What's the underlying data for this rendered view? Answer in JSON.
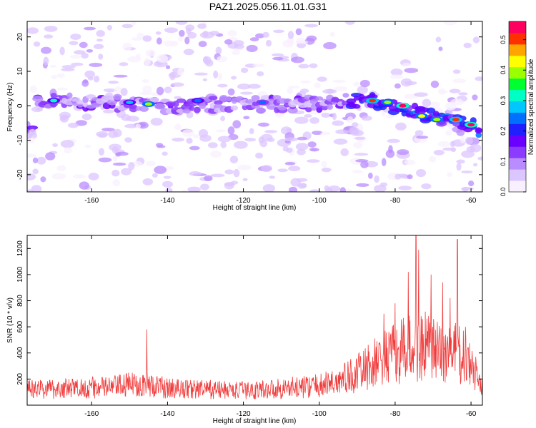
{
  "chart_data": [
    {
      "type": "heatmap",
      "title": "PAZ1.2025.056.11.01.G31",
      "xlabel": "Height of straight line (km)",
      "ylabel": "Frequency (Hz)",
      "xlim": [
        -177,
        -57
      ],
      "ylim": [
        -25,
        24.5
      ],
      "xticks": [
        -160,
        -140,
        -120,
        -100,
        -80,
        -60
      ],
      "yticks": [
        -20,
        -10,
        0,
        10,
        20
      ],
      "colorbar": {
        "label": "Normalized spectral amplitude",
        "range": [
          0,
          0.56
        ],
        "ticks": [
          0.0,
          0.1,
          0.2,
          0.3,
          0.4,
          0.5
        ],
        "colormap": [
          "#f8f0ff",
          "#dcc6ff",
          "#b98cff",
          "#8c3cff",
          "#6a00ff",
          "#1f1fff",
          "#0070ff",
          "#00c8ff",
          "#00ffc4",
          "#00ff30",
          "#9cff00",
          "#ffff00",
          "#ffa500",
          "#ff3000",
          "#ff0060"
        ]
      },
      "ridge": [
        {
          "x": -175,
          "y": 1.5
        },
        {
          "x": -160,
          "y": 1.0
        },
        {
          "x": -150,
          "y": 0.5
        },
        {
          "x": -140,
          "y": 0.0
        },
        {
          "x": -120,
          "y": 0.5
        },
        {
          "x": -100,
          "y": 0.5
        },
        {
          "x": -90,
          "y": 1.5
        },
        {
          "x": -85,
          "y": 1.5
        },
        {
          "x": -80,
          "y": 0.0
        },
        {
          "x": -75,
          "y": -1.5
        },
        {
          "x": -70,
          "y": -3.5
        },
        {
          "x": -65,
          "y": -4.0
        },
        {
          "x": -60,
          "y": -5.5
        },
        {
          "x": -57,
          "y": -7.0
        }
      ],
      "peaks": [
        {
          "x": -145,
          "y": 0.5,
          "amp": 0.4
        },
        {
          "x": -170,
          "y": 1.5,
          "amp": 0.3
        },
        {
          "x": -150,
          "y": 1.0,
          "amp": 0.28
        },
        {
          "x": -132,
          "y": 1.5,
          "amp": 0.26
        },
        {
          "x": -115,
          "y": 1.0,
          "amp": 0.24
        },
        {
          "x": -86,
          "y": 1.5,
          "amp": 0.5
        },
        {
          "x": -82,
          "y": 1.0,
          "amp": 0.42
        },
        {
          "x": -78,
          "y": 0.0,
          "amp": 0.56
        },
        {
          "x": -73,
          "y": -3.0,
          "amp": 0.45
        },
        {
          "x": -69,
          "y": -4.0,
          "amp": 0.4
        },
        {
          "x": -64,
          "y": -4.0,
          "amp": 0.52
        },
        {
          "x": -60,
          "y": -5.5,
          "amp": 0.55
        }
      ]
    },
    {
      "type": "line",
      "xlabel": "Height of straight line (km)",
      "ylabel": "SNR (10 * v/v)",
      "xlim": [
        -177,
        -57
      ],
      "ylim": [
        0,
        1300
      ],
      "xticks": [
        -160,
        -140,
        -120,
        -100,
        -80,
        -60
      ],
      "yticks": [
        200,
        400,
        600,
        800,
        1000,
        1200
      ],
      "line_color": "#f03c3c",
      "snr_envelope": [
        {
          "x": -177,
          "y": 130
        },
        {
          "x": -165,
          "y": 140
        },
        {
          "x": -155,
          "y": 150
        },
        {
          "x": -147,
          "y": 180
        },
        {
          "x": -140,
          "y": 140
        },
        {
          "x": -130,
          "y": 130
        },
        {
          "x": -120,
          "y": 120
        },
        {
          "x": -110,
          "y": 140
        },
        {
          "x": -100,
          "y": 160
        },
        {
          "x": -95,
          "y": 200
        },
        {
          "x": -90,
          "y": 260
        },
        {
          "x": -85,
          "y": 350
        },
        {
          "x": -80,
          "y": 420
        },
        {
          "x": -76,
          "y": 470
        },
        {
          "x": -72,
          "y": 480
        },
        {
          "x": -68,
          "y": 420
        },
        {
          "x": -64,
          "y": 440
        },
        {
          "x": -60,
          "y": 320
        },
        {
          "x": -57,
          "y": 150
        }
      ],
      "snr_peaks": [
        {
          "x": -145.5,
          "y": 580
        },
        {
          "x": -74.5,
          "y": 1300
        },
        {
          "x": -73.8,
          "y": 1190
        },
        {
          "x": -63.6,
          "y": 1270
        },
        {
          "x": -76.5,
          "y": 1020
        },
        {
          "x": -70.5,
          "y": 1000
        },
        {
          "x": -67.5,
          "y": 940
        },
        {
          "x": -80,
          "y": 780
        },
        {
          "x": -83,
          "y": 700
        },
        {
          "x": -65.5,
          "y": 820
        },
        {
          "x": -61.5,
          "y": 600
        }
      ]
    }
  ]
}
